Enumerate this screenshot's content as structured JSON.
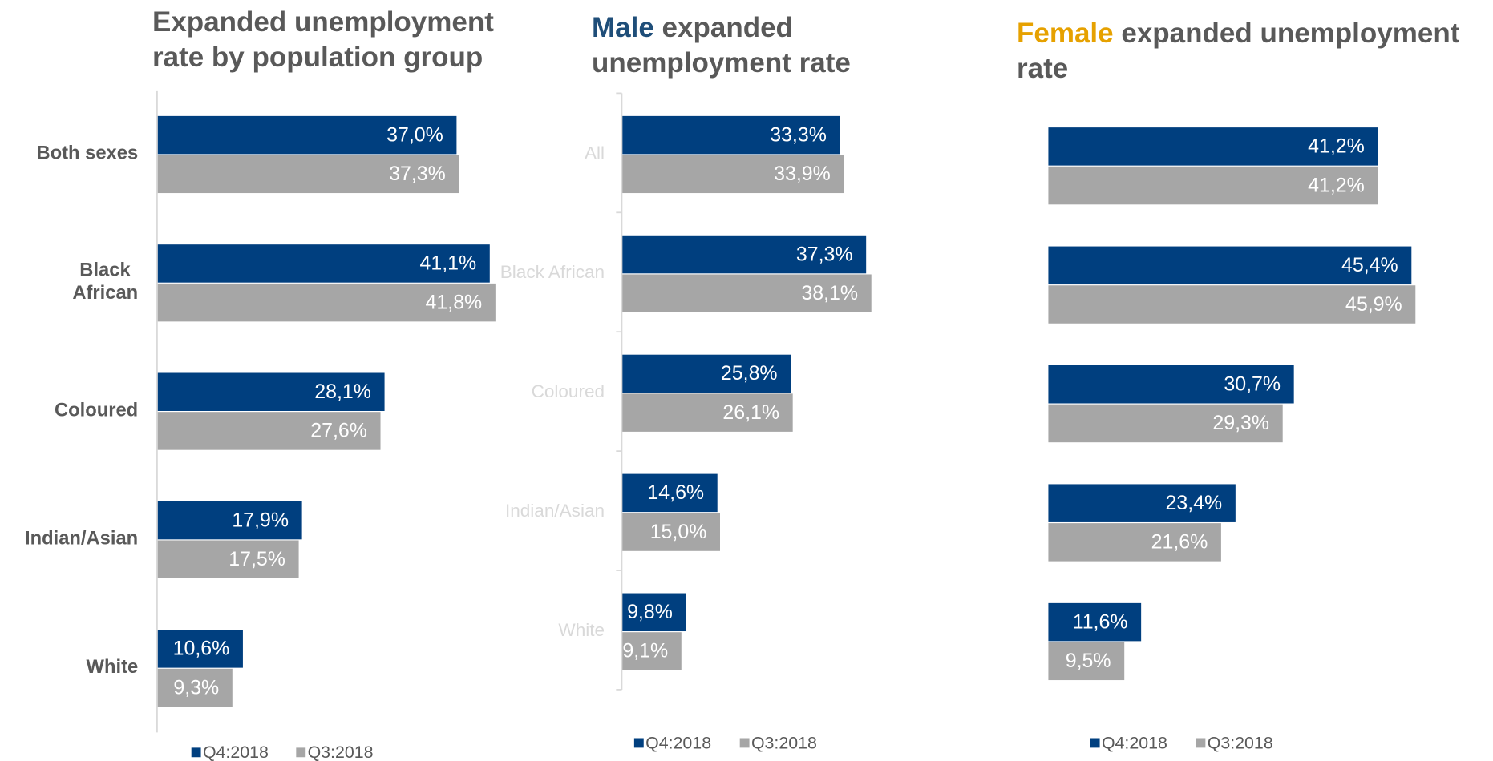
{
  "chart_data": [
    {
      "type": "bar",
      "orientation": "horizontal",
      "title": "Expanded unemployment rate by population group",
      "categories": [
        "Both sexes",
        "Black African",
        "Coloured",
        "Indian/Asian",
        "White"
      ],
      "series": [
        {
          "name": "Q4:2018",
          "color": "#003f7f",
          "values": [
            37.0,
            41.1,
            28.1,
            17.9,
            10.6
          ],
          "value_labels": [
            "37,0%",
            "41,1%",
            "28,1%",
            "17,9%",
            "10,6%"
          ]
        },
        {
          "name": "Q3:2018",
          "color": "#a6a6a6",
          "values": [
            37.3,
            41.8,
            27.6,
            17.5,
            9.3
          ],
          "value_labels": [
            "37,3%",
            "41,8%",
            "27,6%",
            "17,5%",
            "9,3%"
          ]
        }
      ],
      "xlim": [
        0,
        50
      ]
    },
    {
      "type": "bar",
      "orientation": "horizontal",
      "title_highlight": "Male",
      "title_highlight_color": "#1f4e79",
      "title": "expanded unemployment rate",
      "categories": [
        "All",
        "Black African",
        "Coloured",
        "Indian/Asian",
        "White"
      ],
      "series": [
        {
          "name": "Q4:2018",
          "color": "#003f7f",
          "values": [
            33.3,
            37.3,
            25.8,
            14.6,
            9.8
          ],
          "value_labels": [
            "33,3%",
            "37,3%",
            "25,8%",
            "14,6%",
            "9,8%"
          ]
        },
        {
          "name": "Q3:2018",
          "color": "#a6a6a6",
          "values": [
            33.9,
            38.1,
            26.1,
            15.0,
            9.1
          ],
          "value_labels": [
            "33,9%",
            "38,1%",
            "26,1%",
            "15,0%",
            "9,1%"
          ]
        }
      ],
      "xlim": [
        0,
        50
      ]
    },
    {
      "type": "bar",
      "orientation": "horizontal",
      "title_highlight": "Female",
      "title_highlight_color": "#e6a100",
      "title": "expanded unemployment rate",
      "categories": [
        null,
        null,
        null,
        null,
        null
      ],
      "series": [
        {
          "name": "Q4:2018",
          "color": "#003f7f",
          "values": [
            41.2,
            45.4,
            30.7,
            23.4,
            11.6
          ],
          "value_labels": [
            "41,2%",
            "45,4%",
            "30,7%",
            "23,4%",
            "11,6%"
          ]
        },
        {
          "name": "Q3:2018",
          "color": "#a6a6a6",
          "values": [
            41.2,
            45.9,
            29.3,
            21.6,
            9.5
          ],
          "value_labels": [
            "41,2%",
            "45,9%",
            "29,3%",
            "21,6%",
            "9,5%"
          ]
        }
      ],
      "xlim": [
        0,
        50
      ]
    }
  ]
}
